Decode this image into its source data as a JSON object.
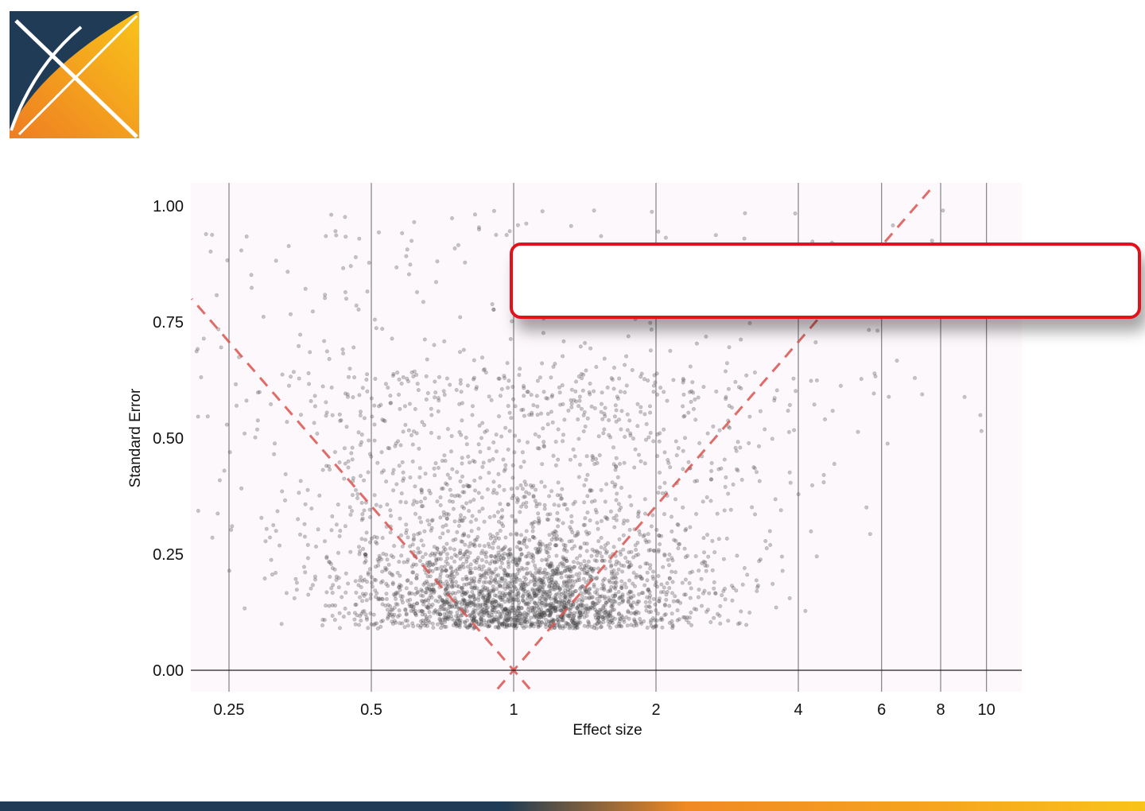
{
  "colors": {
    "logo_navy": "#1f3b55",
    "logo_orange": "#f08a24",
    "logo_yellow": "#f9c31a",
    "plot_background": "#fdf8fc",
    "gridline": "#8a8a8a",
    "point": "#555555",
    "funnel_line": "#d9534f",
    "callout_border": "#e3111b"
  },
  "logo": {
    "icon": "x-logo-icon"
  },
  "callout": {
    "text": ""
  },
  "chart_data": {
    "type": "scatter",
    "title": "",
    "xlabel": "Effect size",
    "ylabel": "Standard Error",
    "x_scale": "log",
    "x_ticks": [
      0.25,
      0.5,
      1,
      2,
      4,
      6,
      8,
      10
    ],
    "x_tick_labels": [
      "0.25",
      "0.5",
      "1",
      "2",
      "4",
      "6",
      "8",
      "10"
    ],
    "y_ticks": [
      0.0,
      0.25,
      0.5,
      0.75,
      1.0
    ],
    "y_tick_labels": [
      "0.00",
      "0.25",
      "0.50",
      "0.75",
      "1.00"
    ],
    "xlim": [
      0.19,
      11.8
    ],
    "ylim": [
      -0.05,
      1.05
    ],
    "grid": "vertical",
    "funnel_center": 1,
    "funnel_z": 1.96,
    "funnel_style": "dashed",
    "legend": "none"
  }
}
